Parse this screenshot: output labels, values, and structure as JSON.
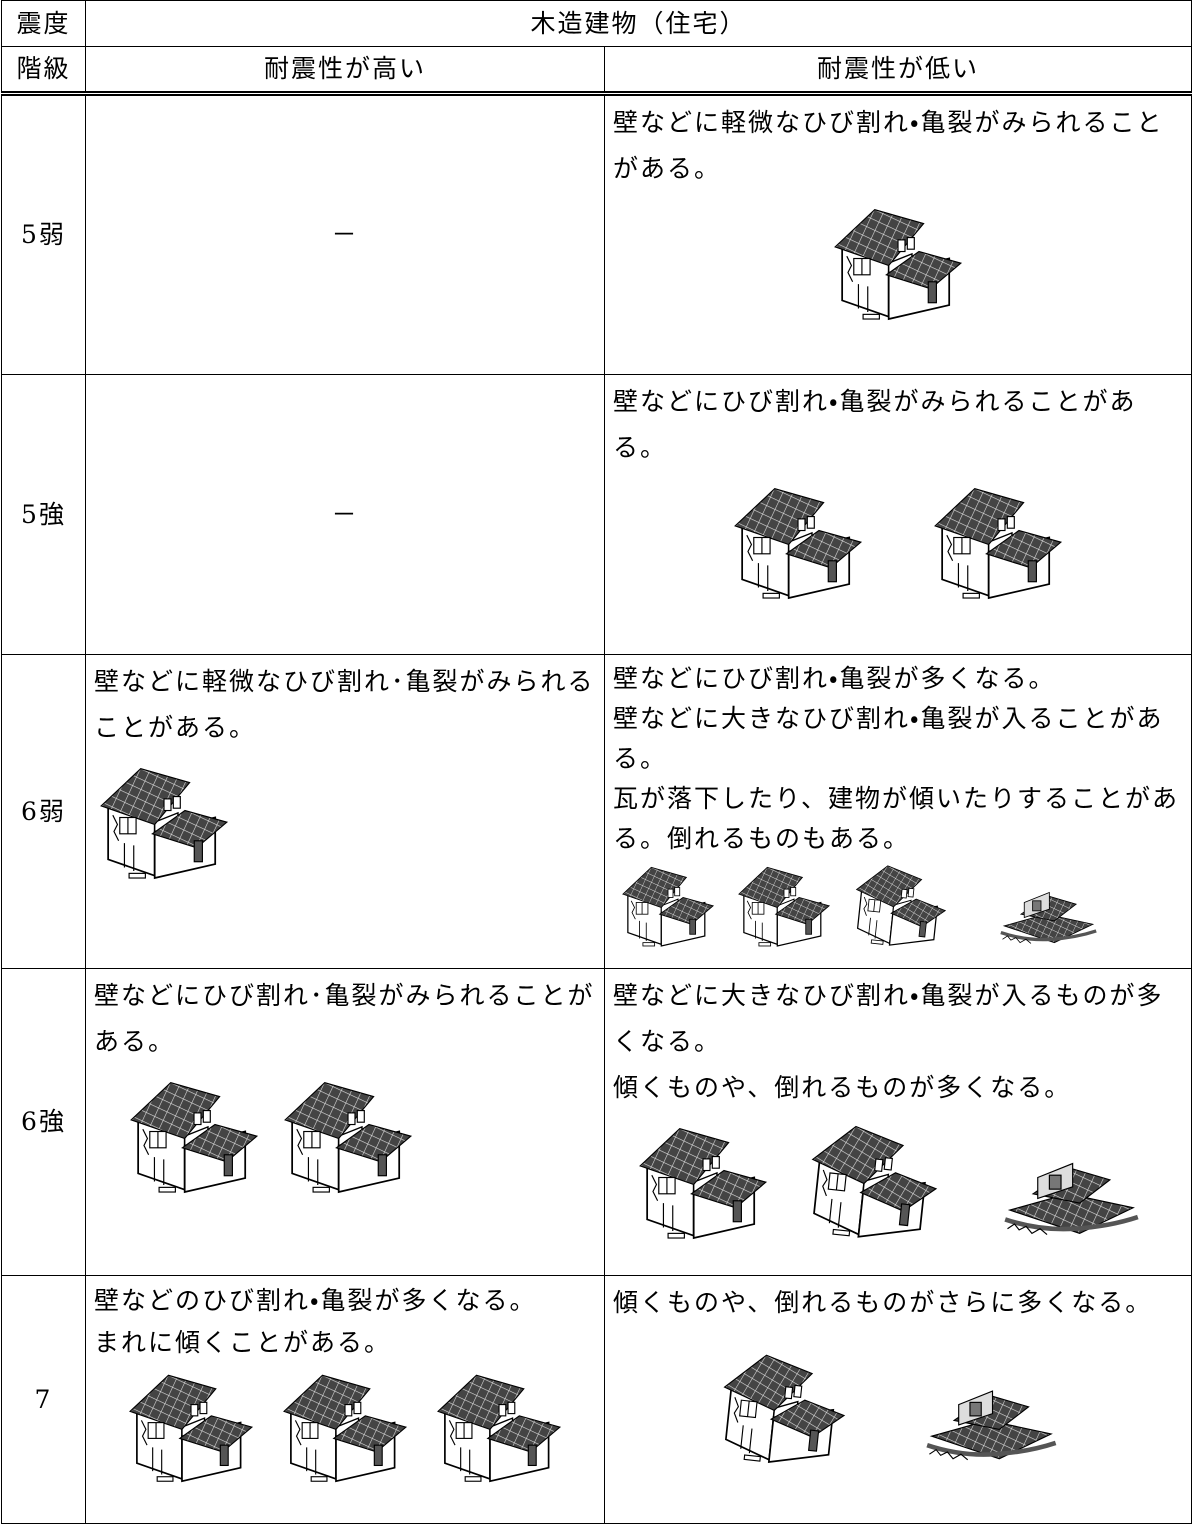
{
  "header": {
    "level_top": "震度",
    "level_bottom": "階級",
    "group": "木造建物（住宅）",
    "high": "耐震性が高い",
    "low": "耐震性が低い"
  },
  "rows": [
    {
      "level": "5弱",
      "high": [
        "－"
      ],
      "low": [
        "壁などに軽微なひび割れ・亀裂がみられることがある。"
      ]
    },
    {
      "level": "5強",
      "high": [
        "－"
      ],
      "low": [
        "壁などにひび割れ・亀裂がみられることがある。"
      ]
    },
    {
      "level": "6弱",
      "high": [
        "壁などに軽微なひび割れ･亀裂がみられることがある。"
      ],
      "low": [
        "壁などにひび割れ・亀裂が多くなる。",
        "壁などに大きなひび割れ・亀裂が入ることがある。",
        "瓦が落下したり、建物が傾いたりすることがある。倒れるものもある。"
      ]
    },
    {
      "level": "6強",
      "high": [
        "壁などにひび割れ･亀裂がみられることがある。"
      ],
      "low": [
        "壁などに大きなひび割れ・亀裂が入るものが多くなる。",
        "傾くものや、倒れるものが多くなる。"
      ]
    },
    {
      "level": "7",
      "high": [
        "壁などのひび割れ・亀裂が多くなる。",
        "まれに傾くことがある。"
      ],
      "low": [
        "傾くものや、倒れるものがさらに多くなる。"
      ]
    }
  ]
}
